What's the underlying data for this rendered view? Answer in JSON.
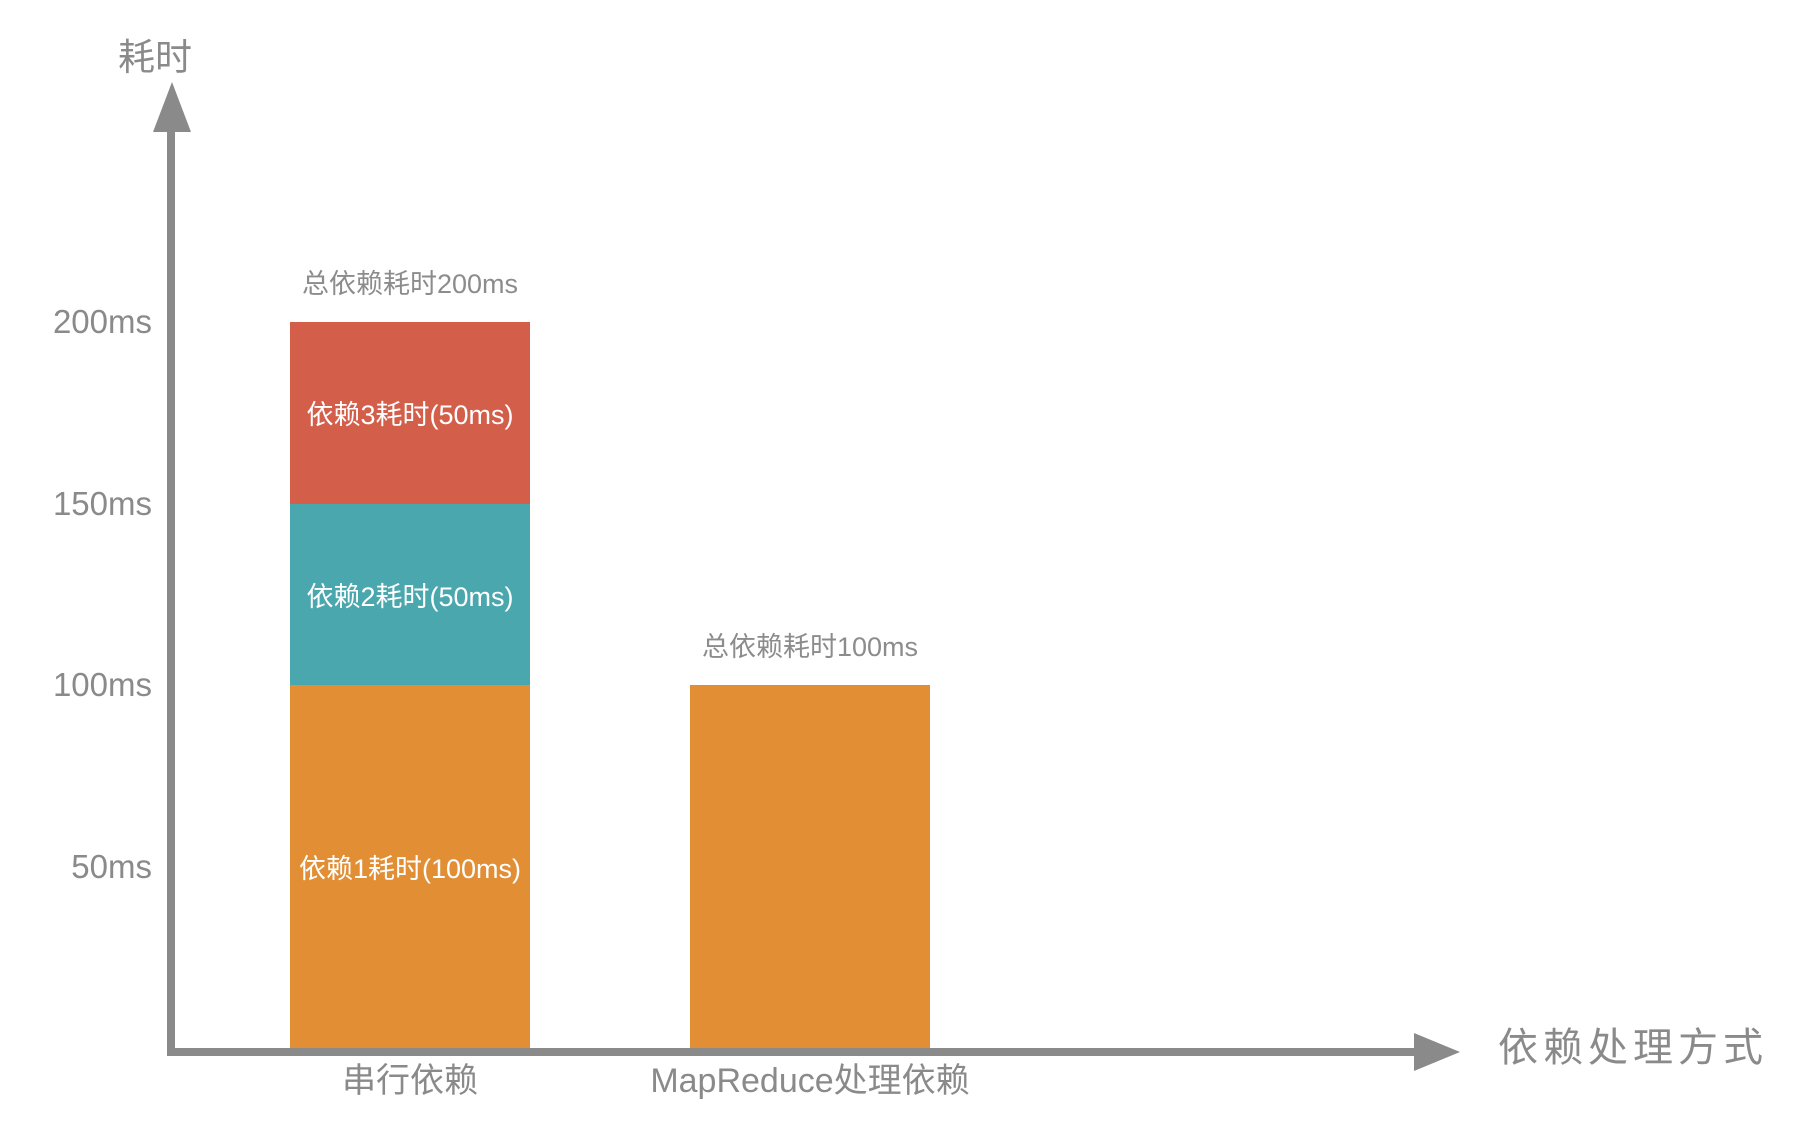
{
  "chart_data": {
    "type": "bar",
    "subtype": "stacked",
    "title": "",
    "ylabel": "耗时",
    "xlabel": "依赖处理方式",
    "ylim_ms": [
      0,
      255
    ],
    "grid": false,
    "legend": false,
    "y_ticks": [
      {
        "label": "200ms",
        "value": 200
      },
      {
        "label": "150ms",
        "value": 150
      },
      {
        "label": "100ms",
        "value": 100
      },
      {
        "label": "50ms",
        "value": 50
      }
    ],
    "categories": [
      "串行依赖",
      "MapReduce处理依赖"
    ],
    "bars": [
      {
        "category": "串行依赖",
        "total_label": "总依赖耗时200ms",
        "total_ms": 200,
        "segments": [
          {
            "label": "依赖1耗时(100ms)",
            "value_ms": 100,
            "color": "#E18E34"
          },
          {
            "label": "依赖2耗时(50ms)",
            "value_ms": 50,
            "color": "#4BA7AE"
          },
          {
            "label": "依赖3耗时(50ms)",
            "value_ms": 50,
            "color": "#D35F4B"
          }
        ]
      },
      {
        "category": "MapReduce处理依赖",
        "total_label": "总依赖耗时100ms",
        "total_ms": 100,
        "segments": [
          {
            "label": "",
            "value_ms": 100,
            "color": "#E18E34"
          }
        ]
      }
    ],
    "colors": {
      "axis": "#8A8A8A",
      "tick_text": "#8A8A8A",
      "annotation_text": "#8C8C8C",
      "segment_text": "#FFFFFF",
      "dep1_orange": "#E18E34",
      "dep2_teal": "#4BA7AE",
      "dep3_red": "#D35F4B",
      "background": "#FFFFFF"
    }
  }
}
